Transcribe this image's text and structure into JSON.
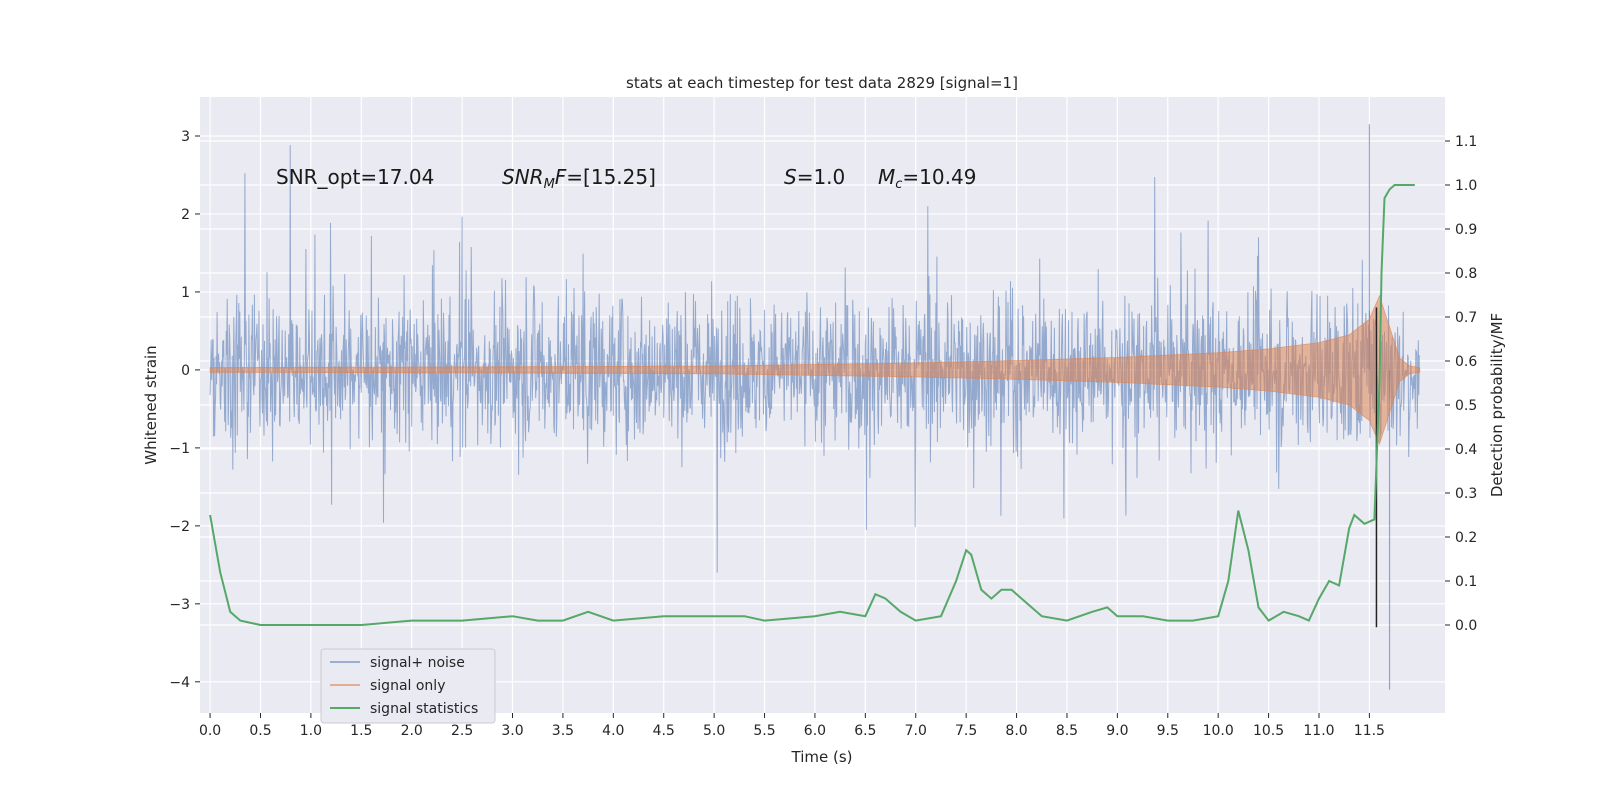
{
  "chart_data": {
    "type": "line",
    "title": "stats at each timestep for test data 2829 [signal=1]",
    "xlabel": "Time (s)",
    "ylabel": "Whitened strain",
    "ylabel_right": "Detection probability/MF",
    "xlim": [
      -0.1,
      12.25
    ],
    "ylim": [
      -4.4,
      3.5
    ],
    "ylim_right": [
      -0.2,
      1.2
    ],
    "x_ticks": [
      0.0,
      0.5,
      1.0,
      1.5,
      2.0,
      2.5,
      3.0,
      3.5,
      4.0,
      4.5,
      5.0,
      5.5,
      6.0,
      6.5,
      7.0,
      7.5,
      8.0,
      8.5,
      9.0,
      9.5,
      10.0,
      10.5,
      11.0,
      11.5
    ],
    "x_tick_labels": [
      "0.0",
      "0.5",
      "1.0",
      "1.5",
      "2.0",
      "2.5",
      "3.0",
      "3.5",
      "4.0",
      "4.5",
      "5.0",
      "5.5",
      "6.0",
      "6.5",
      "7.0",
      "7.5",
      "8.0",
      "8.5",
      "9.0",
      "9.5",
      "10.0",
      "10.5",
      "11.0",
      "11.5"
    ],
    "y_ticks": [
      3,
      2,
      1,
      0,
      -1,
      -2,
      -3,
      -4
    ],
    "y_tick_labels": [
      "3",
      "2",
      "1",
      "0",
      "−1",
      "−2",
      "−3",
      "−4"
    ],
    "y_ticks_right": [
      1.1,
      1.0,
      0.9,
      0.8,
      0.7,
      0.6,
      0.5,
      0.4,
      0.3,
      0.2,
      0.1,
      0.0
    ],
    "y_tick_labels_right": [
      "1.1",
      "1.0",
      "0.9",
      "0.8",
      "0.7",
      "0.6",
      "0.5",
      "0.4",
      "0.3",
      "0.2",
      "0.1",
      "0.0"
    ],
    "grid": true,
    "legend_position": "lower-left",
    "annotations": [
      {
        "text": "SNR_opt=17.04",
        "x": 0.2,
        "y": 2.45
      },
      {
        "text": "SNR_MF=[15.25]",
        "x": 2.6,
        "y": 2.45
      },
      {
        "text": "S=1.0",
        "x": 5.6,
        "y": 2.45
      },
      {
        "text": "M_c=10.49",
        "x": 6.6,
        "y": 2.45
      }
    ],
    "vertical_line": {
      "x": 11.57,
      "y_range": [
        -3.3,
        0.8
      ]
    },
    "series": [
      {
        "name": "signal+ noise",
        "color": "#4c72b0",
        "description": "whitened strain, noise band approx ±1.2 with spikes",
        "x_range": [
          0.0,
          12.0
        ],
        "envelope_typical": [
          -1.2,
          1.2
        ],
        "extremes": {
          "max": 3.15,
          "min": -4.1
        }
      },
      {
        "name": "signal only",
        "color": "#dd8452",
        "description": "chirp, amplitude growing toward merger",
        "x": [
          0.0,
          3.0,
          5.0,
          6.0,
          7.0,
          8.0,
          9.0,
          10.0,
          10.5,
          11.0,
          11.3,
          11.5,
          11.6,
          11.7,
          11.8,
          11.9,
          12.0
        ],
        "amplitude": [
          0.03,
          0.04,
          0.05,
          0.07,
          0.09,
          0.12,
          0.16,
          0.22,
          0.27,
          0.35,
          0.45,
          0.65,
          0.95,
          0.55,
          0.15,
          0.05,
          0.03
        ]
      },
      {
        "name": "signal statistics",
        "color": "#55a868",
        "axis": "right",
        "x": [
          0.0,
          0.1,
          0.2,
          0.3,
          0.5,
          0.75,
          1.0,
          1.5,
          2.0,
          2.5,
          3.0,
          3.25,
          3.5,
          3.75,
          4.0,
          4.5,
          5.0,
          5.3,
          5.5,
          6.0,
          6.25,
          6.5,
          6.6,
          6.7,
          6.85,
          7.0,
          7.25,
          7.4,
          7.5,
          7.55,
          7.65,
          7.75,
          7.85,
          7.95,
          8.1,
          8.25,
          8.5,
          8.75,
          8.9,
          9.0,
          9.25,
          9.5,
          9.75,
          10.0,
          10.1,
          10.2,
          10.3,
          10.4,
          10.5,
          10.65,
          10.8,
          10.9,
          11.0,
          11.1,
          11.2,
          11.3,
          11.35,
          11.45,
          11.55,
          11.6,
          11.62,
          11.65,
          11.7,
          11.75,
          11.9,
          11.95
        ],
        "values": [
          0.25,
          0.12,
          0.03,
          0.01,
          0.0,
          0.0,
          0.0,
          0.0,
          0.01,
          0.01,
          0.02,
          0.01,
          0.01,
          0.03,
          0.01,
          0.02,
          0.02,
          0.02,
          0.01,
          0.02,
          0.03,
          0.02,
          0.07,
          0.06,
          0.03,
          0.01,
          0.02,
          0.1,
          0.17,
          0.16,
          0.08,
          0.06,
          0.08,
          0.08,
          0.05,
          0.02,
          0.01,
          0.03,
          0.04,
          0.02,
          0.02,
          0.01,
          0.01,
          0.02,
          0.1,
          0.26,
          0.17,
          0.04,
          0.01,
          0.03,
          0.02,
          0.01,
          0.06,
          0.1,
          0.09,
          0.22,
          0.25,
          0.23,
          0.24,
          0.55,
          0.8,
          0.97,
          0.99,
          1.0,
          1.0,
          1.0
        ]
      }
    ]
  }
}
